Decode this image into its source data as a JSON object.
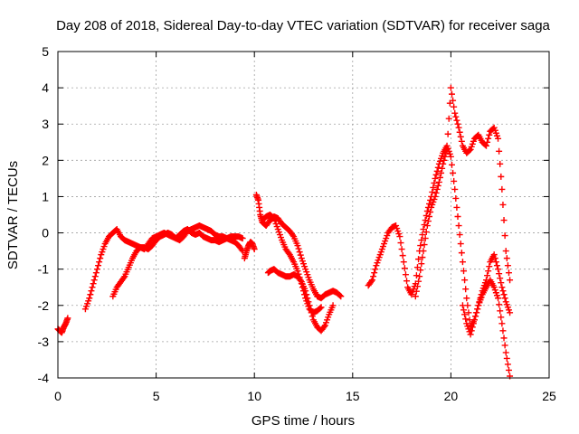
{
  "chart_data": {
    "type": "scatter",
    "title": "Day 208 of 2018, Sidereal Day-to-day VTEC variation (SDTVAR) for receiver saga",
    "xlabel": "GPS time / hours",
    "ylabel": "SDTVAR / TECUs",
    "xlim": [
      0,
      25
    ],
    "ylim": [
      -4,
      5
    ],
    "xticks": [
      0,
      5,
      10,
      15,
      20,
      25
    ],
    "yticks": [
      -4,
      -3,
      -2,
      -1,
      0,
      1,
      2,
      3,
      4,
      5
    ],
    "xtick_labels": [
      "0",
      "5",
      "10",
      "15",
      "20",
      "25"
    ],
    "ytick_labels": [
      "-4",
      "-3",
      "-2",
      "-1",
      "0",
      "1",
      "2",
      "3",
      "4",
      "5"
    ],
    "grid": true,
    "marker": "+",
    "color": "#ff0000",
    "series": [
      {
        "x": [
          0.0,
          0.1,
          0.2,
          0.3,
          0.4,
          0.5
        ],
        "y": [
          -2.65,
          -2.7,
          -2.75,
          -2.6,
          -2.5,
          -2.35
        ]
      },
      {
        "x": [
          1.4,
          1.6,
          1.8,
          2.0,
          2.2,
          2.4,
          2.6,
          2.8,
          3.0,
          3.2,
          3.4,
          3.6,
          3.8,
          4.0,
          4.2,
          4.4,
          4.6,
          4.8,
          5.0,
          5.2,
          5.4,
          5.6,
          5.8,
          6.0,
          6.2,
          6.4,
          6.6,
          6.8,
          7.0,
          7.2,
          7.4,
          7.6,
          7.8,
          8.0,
          8.2,
          8.4,
          8.6,
          8.8,
          9.0,
          9.2,
          9.4
        ],
        "y": [
          -2.1,
          -1.8,
          -1.4,
          -1.0,
          -0.6,
          -0.3,
          -0.1,
          0.0,
          0.1,
          -0.1,
          -0.2,
          -0.25,
          -0.3,
          -0.35,
          -0.4,
          -0.45,
          -0.3,
          -0.15,
          -0.1,
          -0.05,
          0.0,
          -0.05,
          -0.1,
          -0.15,
          -0.05,
          0.05,
          0.1,
          0.0,
          -0.05,
          0.0,
          -0.1,
          -0.15,
          -0.2,
          -0.2,
          -0.25,
          -0.2,
          -0.15,
          -0.1,
          -0.1,
          -0.1,
          -0.15
        ]
      },
      {
        "x": [
          2.8,
          3.0,
          3.2,
          3.4,
          3.6,
          3.8,
          4.0,
          4.2,
          4.4,
          4.6,
          4.8,
          5.0,
          5.2,
          5.4,
          5.6,
          5.8,
          6.0,
          6.2,
          6.4,
          6.6,
          6.8,
          7.0,
          7.2,
          7.4,
          7.6,
          7.8,
          8.0,
          8.2,
          8.4,
          8.6,
          8.8,
          9.0,
          9.2,
          9.4
        ],
        "y": [
          -1.75,
          -1.5,
          -1.35,
          -1.2,
          -0.95,
          -0.7,
          -0.5,
          -0.4,
          -0.4,
          -0.45,
          -0.35,
          -0.2,
          -0.1,
          -0.05,
          0.0,
          -0.05,
          -0.15,
          -0.2,
          -0.1,
          0.05,
          0.1,
          0.15,
          0.2,
          0.15,
          0.1,
          0.05,
          -0.05,
          -0.1,
          -0.1,
          -0.15,
          -0.2,
          -0.25,
          -0.35,
          -0.5
        ]
      },
      {
        "x": [
          9.5,
          9.6,
          9.7,
          9.8,
          9.9,
          10.0
        ],
        "y": [
          -0.7,
          -0.5,
          -0.35,
          -0.25,
          -0.3,
          -0.45
        ]
      },
      {
        "x": [
          10.1,
          10.2,
          10.3,
          10.4,
          10.5,
          10.6,
          10.8,
          11.0,
          11.2,
          11.4,
          11.6,
          11.8,
          12.0,
          12.2,
          12.4,
          12.6,
          12.8,
          13.0,
          13.2,
          13.4,
          13.6,
          13.8,
          14.0,
          14.2,
          14.4
        ],
        "y": [
          1.05,
          0.9,
          0.5,
          0.3,
          0.25,
          0.2,
          0.35,
          0.45,
          0.4,
          0.25,
          0.15,
          0.05,
          -0.1,
          -0.35,
          -0.7,
          -1.0,
          -1.3,
          -1.55,
          -1.75,
          -1.8,
          -1.7,
          -1.65,
          -1.6,
          -1.65,
          -1.75
        ]
      },
      {
        "x": [
          10.7,
          10.8,
          11.0,
          11.2,
          11.4,
          11.6,
          11.8,
          12.0,
          12.2,
          12.4,
          12.6,
          12.8,
          13.0,
          13.2,
          13.4,
          13.6,
          13.8,
          14.0
        ],
        "y": [
          -1.1,
          -1.05,
          -1.0,
          -1.1,
          -1.15,
          -1.2,
          -1.2,
          -1.15,
          -1.2,
          -1.35,
          -1.6,
          -2.0,
          -2.4,
          -2.6,
          -2.7,
          -2.55,
          -2.25,
          -2.0
        ]
      },
      {
        "x": [
          10.4,
          10.6,
          10.8,
          11.0,
          11.2,
          11.4,
          11.6,
          11.8,
          12.0,
          12.2,
          12.4,
          12.6,
          12.8,
          13.0,
          13.2,
          13.4
        ],
        "y": [
          0.35,
          0.45,
          0.5,
          0.4,
          0.1,
          -0.2,
          -0.45,
          -0.6,
          -0.8,
          -1.05,
          -1.4,
          -1.8,
          -2.1,
          -2.2,
          -2.15,
          -2.05
        ]
      },
      {
        "x": [
          15.8,
          16.0,
          16.2,
          16.4,
          16.6,
          16.8,
          17.0,
          17.2,
          17.4,
          17.6,
          17.8,
          18.0,
          18.2,
          18.4,
          18.6,
          18.8,
          19.0,
          19.2,
          19.4,
          19.6,
          19.8,
          20.0,
          20.2,
          20.4,
          20.6,
          20.8,
          21.0,
          21.2,
          21.4,
          21.6,
          21.8,
          22.0,
          22.2,
          22.4,
          22.6,
          22.8,
          23.0
        ],
        "y": [
          -1.45,
          -1.3,
          -0.9,
          -0.6,
          -0.3,
          0.0,
          0.15,
          0.2,
          -0.1,
          -0.8,
          -1.5,
          -1.7,
          -1.4,
          -0.5,
          0.1,
          0.6,
          1.0,
          1.5,
          1.9,
          2.2,
          2.4,
          2.1,
          1.2,
          0.2,
          -0.8,
          -1.8,
          -2.6,
          -2.4,
          -2.0,
          -1.6,
          -1.3,
          -0.8,
          -0.6,
          -1.0,
          -1.5,
          -1.9,
          -2.2
        ]
      },
      {
        "x": [
          18.2,
          18.4,
          18.6,
          18.8,
          19.0,
          19.2,
          19.4,
          19.6,
          19.8,
          20.0,
          20.2,
          20.4,
          20.6,
          20.8,
          21.0,
          21.2,
          21.4,
          21.6,
          21.8,
          22.0,
          22.2,
          22.4,
          22.6,
          22.8,
          23.0
        ],
        "y": [
          -1.75,
          -1.2,
          -0.5,
          0.2,
          0.7,
          1.0,
          1.4,
          1.9,
          2.3,
          4.0,
          3.3,
          2.9,
          2.4,
          2.2,
          2.3,
          2.6,
          2.7,
          2.5,
          2.4,
          2.8,
          2.9,
          2.6,
          1.2,
          -0.5,
          -1.3
        ]
      },
      {
        "x": [
          20.6,
          20.8,
          21.0,
          21.2,
          21.4,
          21.6,
          21.8,
          22.0,
          22.2,
          22.4,
          22.6,
          22.8,
          23.0
        ],
        "y": [
          -2.0,
          -2.5,
          -2.8,
          -2.4,
          -2.0,
          -1.7,
          -1.5,
          -1.3,
          -1.5,
          -1.8,
          -2.5,
          -3.3,
          -3.95
        ]
      }
    ]
  }
}
